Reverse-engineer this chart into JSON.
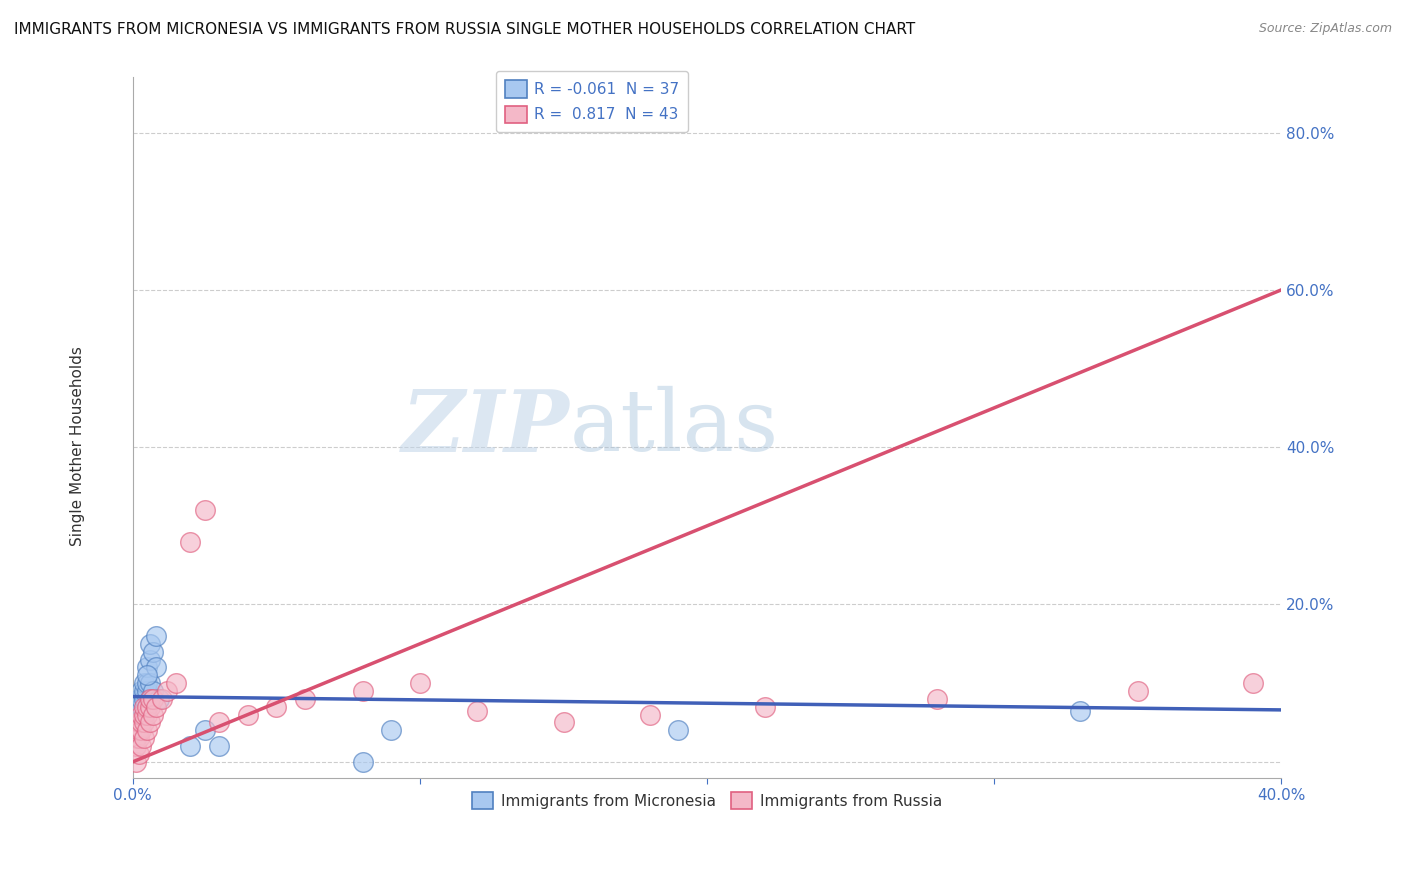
{
  "title": "IMMIGRANTS FROM MICRONESIA VS IMMIGRANTS FROM RUSSIA SINGLE MOTHER HOUSEHOLDS CORRELATION CHART",
  "source": "Source: ZipAtlas.com",
  "ylabel": "Single Mother Households",
  "xlim": [
    0.0,
    0.4
  ],
  "ylim": [
    -0.02,
    0.87
  ],
  "yticks": [
    0.0,
    0.2,
    0.4,
    0.6,
    0.8
  ],
  "xticks": [
    0.0,
    0.1,
    0.2,
    0.3,
    0.4
  ],
  "xtick_labels_show": [
    "0.0%",
    "",
    "",
    "",
    "40.0%"
  ],
  "ytick_labels": [
    "",
    "20.0%",
    "40.0%",
    "60.0%",
    "80.0%"
  ],
  "watermark_zip": "ZIP",
  "watermark_atlas": "atlas",
  "legend_1_label": "R = -0.061  N = 37",
  "legend_2_label": "R =  0.817  N = 43",
  "micronesia_color": "#a8c8f0",
  "russia_color": "#f4b8c8",
  "micronesia_edge_color": "#5080c0",
  "russia_edge_color": "#e06080",
  "micronesia_line_color": "#4060b8",
  "russia_line_color": "#d85070",
  "micronesia_line": [
    0.0,
    0.083,
    0.4,
    0.066
  ],
  "russia_line": [
    0.0,
    0.0,
    0.4,
    0.6
  ],
  "micronesia_points": [
    [
      0.001,
      0.03
    ],
    [
      0.001,
      0.04
    ],
    [
      0.001,
      0.05
    ],
    [
      0.001,
      0.06
    ],
    [
      0.002,
      0.04
    ],
    [
      0.002,
      0.06
    ],
    [
      0.002,
      0.07
    ],
    [
      0.002,
      0.08
    ],
    [
      0.003,
      0.05
    ],
    [
      0.003,
      0.07
    ],
    [
      0.003,
      0.08
    ],
    [
      0.003,
      0.09
    ],
    [
      0.004,
      0.06
    ],
    [
      0.004,
      0.08
    ],
    [
      0.004,
      0.09
    ],
    [
      0.004,
      0.1
    ],
    [
      0.005,
      0.07
    ],
    [
      0.005,
      0.09
    ],
    [
      0.005,
      0.1
    ],
    [
      0.005,
      0.12
    ],
    [
      0.006,
      0.08
    ],
    [
      0.006,
      0.1
    ],
    [
      0.006,
      0.13
    ],
    [
      0.006,
      0.15
    ],
    [
      0.007,
      0.09
    ],
    [
      0.007,
      0.14
    ],
    [
      0.008,
      0.12
    ],
    [
      0.008,
      0.16
    ],
    [
      0.009,
      0.08
    ],
    [
      0.02,
      0.02
    ],
    [
      0.025,
      0.04
    ],
    [
      0.03,
      0.02
    ],
    [
      0.08,
      0.0
    ],
    [
      0.09,
      0.04
    ],
    [
      0.19,
      0.04
    ],
    [
      0.33,
      0.065
    ],
    [
      0.005,
      0.11
    ]
  ],
  "russia_points": [
    [
      0.001,
      0.0
    ],
    [
      0.001,
      0.02
    ],
    [
      0.001,
      0.03
    ],
    [
      0.001,
      0.04
    ],
    [
      0.002,
      0.01
    ],
    [
      0.002,
      0.03
    ],
    [
      0.002,
      0.04
    ],
    [
      0.002,
      0.05
    ],
    [
      0.003,
      0.02
    ],
    [
      0.003,
      0.04
    ],
    [
      0.003,
      0.05
    ],
    [
      0.003,
      0.06
    ],
    [
      0.004,
      0.03
    ],
    [
      0.004,
      0.05
    ],
    [
      0.004,
      0.06
    ],
    [
      0.004,
      0.07
    ],
    [
      0.005,
      0.04
    ],
    [
      0.005,
      0.06
    ],
    [
      0.005,
      0.07
    ],
    [
      0.006,
      0.05
    ],
    [
      0.006,
      0.07
    ],
    [
      0.006,
      0.08
    ],
    [
      0.007,
      0.06
    ],
    [
      0.007,
      0.08
    ],
    [
      0.008,
      0.07
    ],
    [
      0.01,
      0.08
    ],
    [
      0.012,
      0.09
    ],
    [
      0.015,
      0.1
    ],
    [
      0.02,
      0.28
    ],
    [
      0.025,
      0.32
    ],
    [
      0.03,
      0.05
    ],
    [
      0.04,
      0.06
    ],
    [
      0.05,
      0.07
    ],
    [
      0.06,
      0.08
    ],
    [
      0.08,
      0.09
    ],
    [
      0.1,
      0.1
    ],
    [
      0.12,
      0.065
    ],
    [
      0.15,
      0.05
    ],
    [
      0.18,
      0.06
    ],
    [
      0.22,
      0.07
    ],
    [
      0.28,
      0.08
    ],
    [
      0.35,
      0.09
    ],
    [
      0.39,
      0.1
    ]
  ]
}
